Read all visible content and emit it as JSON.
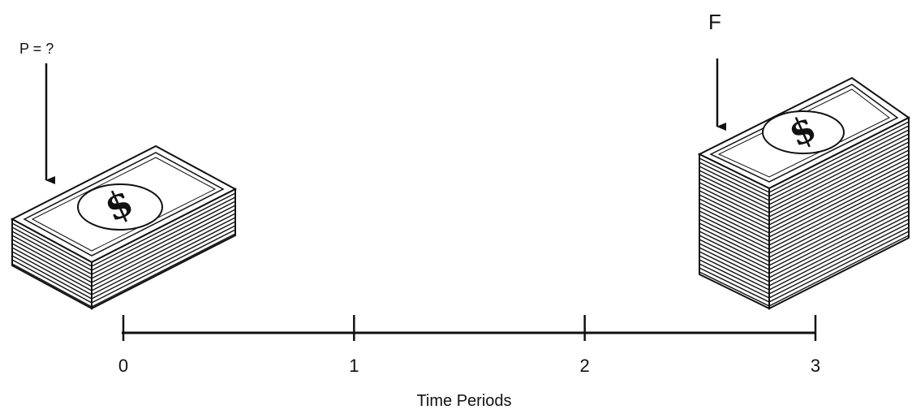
{
  "present_value": {
    "label": "P = ?"
  },
  "future_value": {
    "label": "F"
  },
  "timeline": {
    "ticks": [
      "0",
      "1",
      "2",
      "3"
    ],
    "axis_label": "Time Periods"
  },
  "icons": {
    "present": "money-stack-icon",
    "future": "money-stack-icon"
  },
  "colors": {
    "ink": "#111111",
    "paper": "#ffffff"
  }
}
